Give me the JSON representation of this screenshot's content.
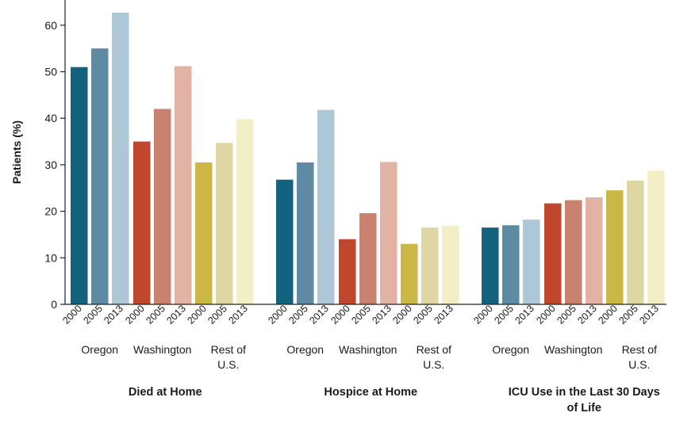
{
  "chart_data": {
    "type": "bar",
    "ylabel": "Patients (%)",
    "ylim": [
      0,
      65
    ],
    "yticks": [
      0,
      10,
      20,
      30,
      40,
      50,
      60
    ],
    "years": [
      "2000",
      "2005",
      "2013"
    ],
    "regions": [
      {
        "name": "Oregon",
        "label_lines": [
          "Oregon"
        ]
      },
      {
        "name": "Washington",
        "label_lines": [
          "Washington"
        ]
      },
      {
        "name": "Rest of U.S.",
        "label_lines": [
          "Rest of",
          "U.S."
        ]
      }
    ],
    "colors": {
      "Oregon": [
        "#13627e",
        "#5e8ba3",
        "#adc7d6"
      ],
      "Washington": [
        "#c0462e",
        "#c9826e",
        "#e2b3a4"
      ],
      "Rest of U.S.": [
        "#cbb745",
        "#ded7a4",
        "#f2eec6"
      ]
    },
    "panels": [
      {
        "title_lines": [
          "Died at Home"
        ],
        "values": [
          [
            51,
            55,
            62.7
          ],
          [
            35,
            42,
            51.2
          ],
          [
            30.5,
            34.7,
            39.8
          ]
        ]
      },
      {
        "title_lines": [
          "Hospice at Home"
        ],
        "values": [
          [
            26.8,
            30.5,
            41.8
          ],
          [
            14,
            19.6,
            30.6
          ],
          [
            13,
            16.5,
            16.9
          ]
        ]
      },
      {
        "title_lines": [
          "ICU Use in the Last 30 Days",
          "of Life"
        ],
        "values": [
          [
            16.5,
            17,
            18.2
          ],
          [
            21.7,
            22.4,
            23
          ],
          [
            24.5,
            26.6,
            28.7
          ]
        ]
      }
    ]
  }
}
